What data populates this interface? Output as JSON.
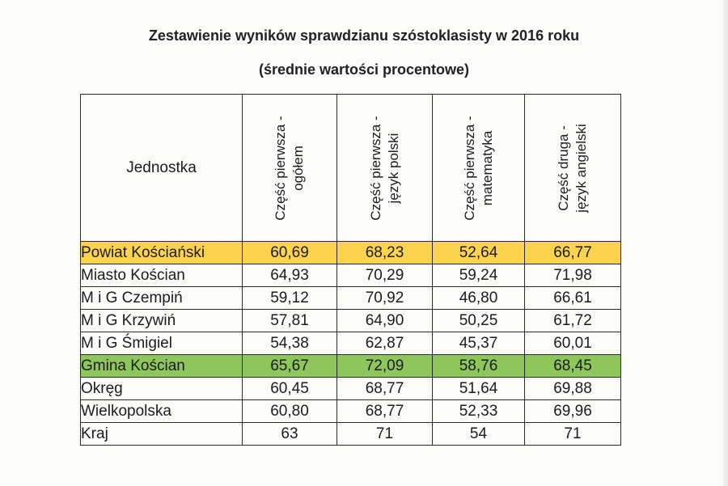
{
  "title": "Zestawienie wyników sprawdzianu szóstoklasisty w 2016 roku",
  "subtitle": "(średnie wartości procentowe)",
  "colors": {
    "highlight_yellow": "#fcd34f",
    "highlight_green": "#8dc65a"
  },
  "table": {
    "unit_header": "Jednostka",
    "column_headers": [
      [
        "Część pierwsza -",
        "ogółem"
      ],
      [
        "Część pierwsza -",
        "język polski"
      ],
      [
        "Część pierwsza -",
        "matematyka"
      ],
      [
        "Część druga -",
        "język angielski"
      ]
    ],
    "rows": [
      {
        "name": "Powiat Kościański",
        "values": [
          "60,69",
          "68,23",
          "52,64",
          "66,77"
        ],
        "highlight": "yellow"
      },
      {
        "name": "Miasto Kościan",
        "values": [
          "64,93",
          "70,29",
          "59,24",
          "71,98"
        ],
        "highlight": ""
      },
      {
        "name": "M i G Czempiń",
        "values": [
          "59,12",
          "70,92",
          "46,80",
          "66,61"
        ],
        "highlight": ""
      },
      {
        "name": "M i G Krzywiń",
        "values": [
          "57,81",
          "64,90",
          "50,25",
          "61,72"
        ],
        "highlight": ""
      },
      {
        "name": "M i G Śmigiel",
        "values": [
          "54,38",
          "62,87",
          "45,37",
          "60,01"
        ],
        "highlight": ""
      },
      {
        "name": "Gmina Kościan",
        "values": [
          "65,67",
          "72,09",
          "58,76",
          "68,45"
        ],
        "highlight": "green"
      },
      {
        "name": "Okręg",
        "values": [
          "60,45",
          "68,77",
          "51,64",
          "69,88"
        ],
        "highlight": ""
      },
      {
        "name": "Wielkopolska",
        "values": [
          "60,80",
          "68,77",
          "52,33",
          "69,96"
        ],
        "highlight": ""
      },
      {
        "name": "Kraj",
        "values": [
          "63",
          "71",
          "54",
          "71"
        ],
        "highlight": ""
      }
    ]
  }
}
